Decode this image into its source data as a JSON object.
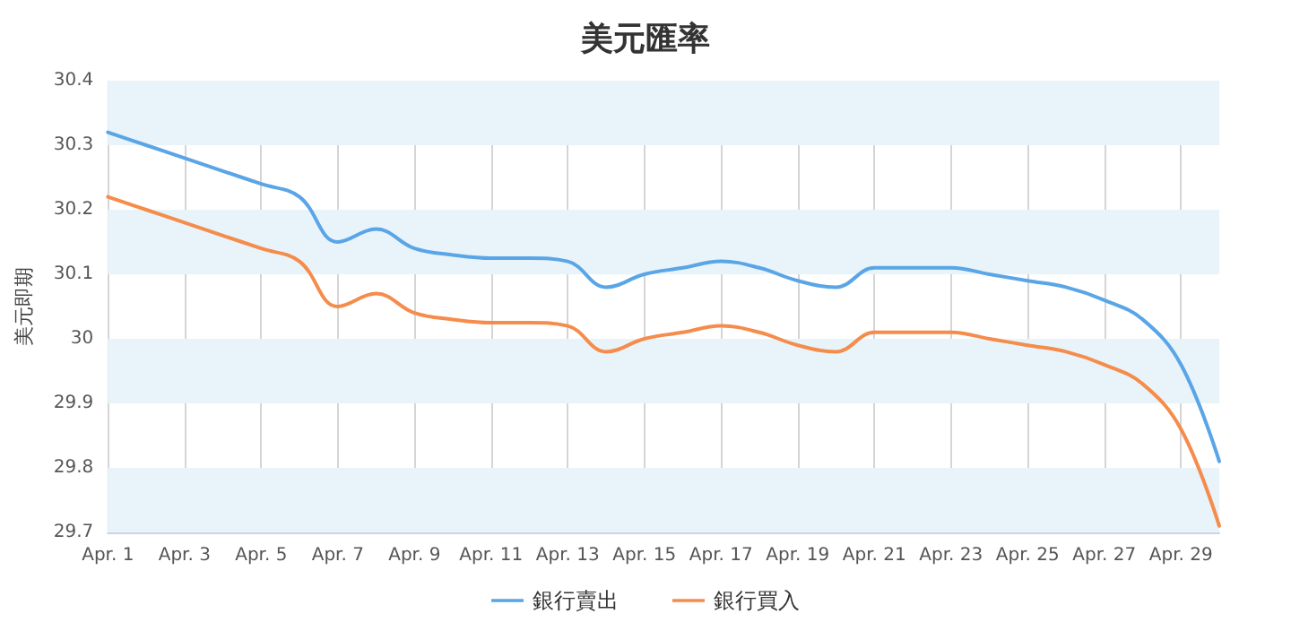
{
  "chart_data": {
    "type": "line",
    "title": "美元匯率",
    "ylabel": "美元即期",
    "categories": [
      "Apr. 1",
      null,
      "Apr. 3",
      null,
      "Apr. 5",
      null,
      "Apr. 7",
      null,
      "Apr. 9",
      null,
      "Apr. 11",
      null,
      "Apr. 13",
      null,
      "Apr. 15",
      null,
      "Apr. 17",
      null,
      "Apr. 19",
      null,
      "Apr. 21",
      null,
      "Apr. 23",
      null,
      "Apr. 25",
      null,
      "Apr. 27",
      null,
      "Apr. 29",
      null
    ],
    "series": [
      {
        "name": "銀行賣出",
        "color": "#5aa5e6",
        "values": [
          30.32,
          30.3,
          30.28,
          30.26,
          30.24,
          30.22,
          30.15,
          30.17,
          30.14,
          30.13,
          30.125,
          30.125,
          30.12,
          30.08,
          30.1,
          30.11,
          30.12,
          30.11,
          30.09,
          30.08,
          30.11,
          30.11,
          30.11,
          30.1,
          30.09,
          30.08,
          30.06,
          30.03,
          29.96,
          29.81
        ]
      },
      {
        "name": "銀行買入",
        "color": "#f58c4b",
        "values": [
          30.22,
          30.2,
          30.18,
          30.16,
          30.14,
          30.12,
          30.05,
          30.07,
          30.04,
          30.03,
          30.025,
          30.025,
          30.02,
          29.98,
          30,
          30.01,
          30.02,
          30.01,
          29.99,
          29.98,
          30.01,
          30.01,
          30.01,
          30,
          29.99,
          29.98,
          29.96,
          29.93,
          29.86,
          29.71
        ]
      }
    ],
    "ylim": [
      29.7,
      30.4
    ],
    "yticks": [
      29.7,
      29.8,
      29.9,
      30,
      30.1,
      30.2,
      30.3,
      30.4
    ],
    "bands": [
      {
        "axis": "y",
        "from": 29.7,
        "to": 29.8,
        "color": "#e8f4fa"
      },
      {
        "axis": "y",
        "from": 29.9,
        "to": 30,
        "color": "#e8f4fa"
      },
      {
        "axis": "y",
        "from": 30.1,
        "to": 30.2,
        "color": "#e8f4fa"
      },
      {
        "axis": "y",
        "from": 30.3,
        "to": 30.4,
        "color": "#e8f4fa"
      }
    ],
    "grid": "x",
    "legend": "bottom",
    "marker": "none",
    "line_style": "solid"
  }
}
